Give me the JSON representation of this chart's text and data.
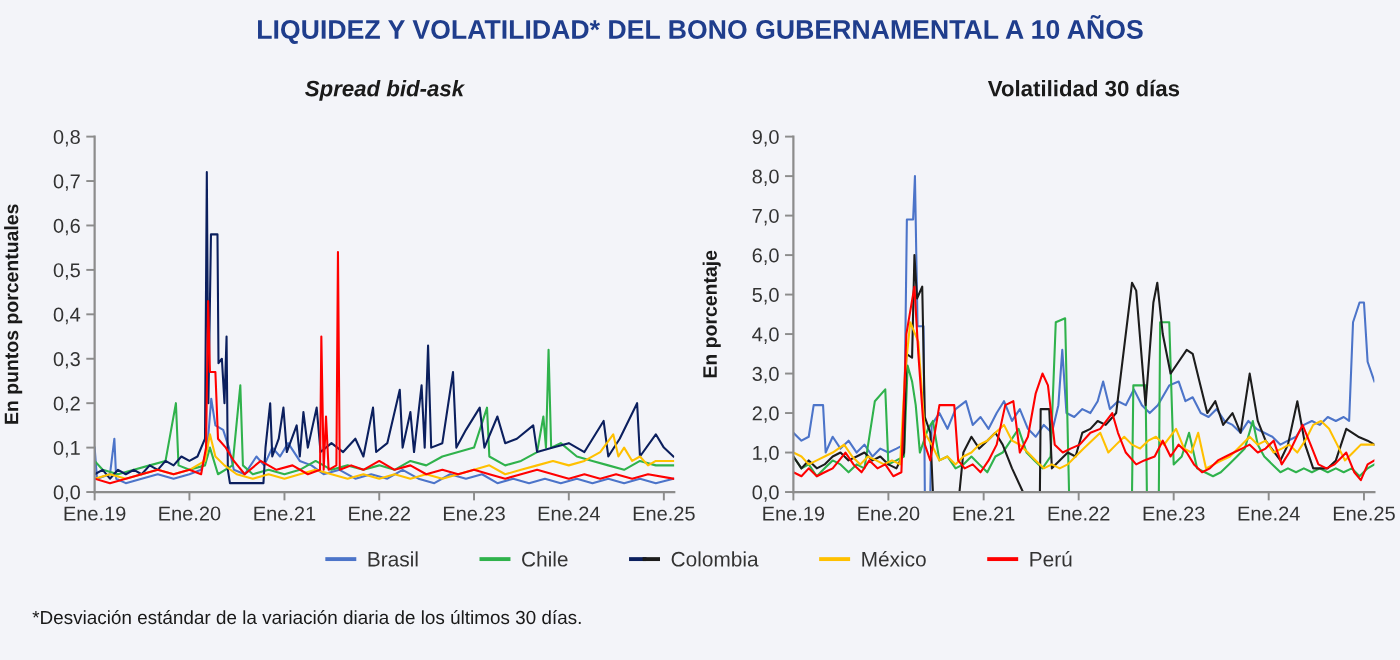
{
  "chart_data": [
    {
      "type": "line",
      "title": "LIQUIDEZ Y VOLATILIDAD* DEL BONO GUBERNAMENTAL A 10 AÑOS",
      "subtitle": "Spread bid-ask",
      "ylabel": "En puntos porcentuales",
      "legend": "bottom",
      "annotations": [
        "*Desviación estándar de la variación diaria de los últimos 30 días."
      ],
      "xlim": [
        "2019-01-01",
        "2025-02-10"
      ],
      "xticks": [
        {
          "value": "2019-01-01",
          "label": "Ene.19"
        },
        {
          "value": "2020-01-01",
          "label": "Ene.20"
        },
        {
          "value": "2021-01-01",
          "label": "Ene.21"
        },
        {
          "value": "2022-01-01",
          "label": "Ene.22"
        },
        {
          "value": "2023-01-01",
          "label": "Ene.23"
        },
        {
          "value": "2024-01-01",
          "label": "Ene.24"
        },
        {
          "value": "2025-01-01",
          "label": "Ene.25"
        }
      ],
      "ylim": [
        0,
        0.8
      ],
      "yticks": [
        {
          "value": 0,
          "label": "0,0"
        },
        {
          "value": 0.1,
          "label": "0,1"
        },
        {
          "value": 0.2,
          "label": "0,2"
        },
        {
          "value": 0.3,
          "label": "0,3"
        },
        {
          "value": 0.4,
          "label": "0,4"
        },
        {
          "value": 0.5,
          "label": "0,5"
        },
        {
          "value": 0.6,
          "label": "0,6"
        },
        {
          "value": 0.7,
          "label": "0,7"
        },
        {
          "value": 0.8,
          "label": "0,8"
        }
      ],
      "series": [
        {
          "name": "Brasil",
          "color": "#4c74c9",
          "x": [
            "2019-01-01",
            "2019-01-10",
            "2019-03-01",
            "2019-03-18",
            "2019-03-25",
            "2019-05-01",
            "2019-07-01",
            "2019-09-01",
            "2019-11-01",
            "2020-01-01",
            "2020-02-15",
            "2020-03-10",
            "2020-03-25",
            "2020-04-10",
            "2020-05-10",
            "2020-06-01",
            "2020-06-20",
            "2020-08-01",
            "2020-09-15",
            "2020-10-15",
            "2020-11-15",
            "2020-12-15",
            "2021-01-15",
            "2021-03-01",
            "2021-04-15",
            "2021-06-01",
            "2021-08-01",
            "2021-10-01",
            "2021-12-01",
            "2022-02-01",
            "2022-04-01",
            "2022-06-01",
            "2022-08-01",
            "2022-10-01",
            "2022-12-01",
            "2023-02-01",
            "2023-04-01",
            "2023-06-01",
            "2023-08-01",
            "2023-10-01",
            "2023-12-01",
            "2024-02-01",
            "2024-04-01",
            "2024-06-01",
            "2024-08-01",
            "2024-10-01",
            "2024-12-01",
            "2025-02-07"
          ],
          "values": [
            0.1,
            0.03,
            0.04,
            0.12,
            0.03,
            0.02,
            0.03,
            0.04,
            0.03,
            0.04,
            0.05,
            0.1,
            0.21,
            0.15,
            0.14,
            0.1,
            0.05,
            0.04,
            0.08,
            0.06,
            0.1,
            0.08,
            0.11,
            0.07,
            0.06,
            0.04,
            0.05,
            0.03,
            0.04,
            0.03,
            0.05,
            0.03,
            0.02,
            0.04,
            0.03,
            0.04,
            0.02,
            0.03,
            0.02,
            0.03,
            0.02,
            0.03,
            0.02,
            0.03,
            0.02,
            0.03,
            0.02,
            0.03
          ]
        },
        {
          "name": "Chile",
          "color": "#2fb24c",
          "x": [
            "2019-01-01",
            "2019-02-01",
            "2019-04-01",
            "2019-06-01",
            "2019-08-01",
            "2019-10-01",
            "2019-11-10",
            "2019-11-20",
            "2020-01-01",
            "2020-03-01",
            "2020-03-20",
            "2020-04-20",
            "2020-06-15",
            "2020-07-15",
            "2020-07-25",
            "2020-09-01",
            "2020-11-01",
            "2021-01-01",
            "2021-03-01",
            "2021-05-01",
            "2021-07-01",
            "2021-09-01",
            "2021-11-01",
            "2022-01-01",
            "2022-03-01",
            "2022-05-01",
            "2022-07-01",
            "2022-09-01",
            "2022-11-01",
            "2023-01-01",
            "2023-02-20",
            "2023-03-01",
            "2023-05-01",
            "2023-07-01",
            "2023-09-01",
            "2023-09-25",
            "2023-10-05",
            "2023-10-15",
            "2023-10-25",
            "2023-12-01",
            "2024-02-01",
            "2024-04-01",
            "2024-06-01",
            "2024-08-01",
            "2024-10-01",
            "2024-12-01",
            "2025-02-07"
          ],
          "values": [
            0.07,
            0.05,
            0.04,
            0.05,
            0.06,
            0.07,
            0.2,
            0.06,
            0.05,
            0.06,
            0.1,
            0.04,
            0.06,
            0.24,
            0.06,
            0.04,
            0.05,
            0.04,
            0.05,
            0.07,
            0.05,
            0.06,
            0.05,
            0.06,
            0.05,
            0.07,
            0.06,
            0.08,
            0.09,
            0.1,
            0.19,
            0.08,
            0.06,
            0.07,
            0.09,
            0.17,
            0.1,
            0.32,
            0.1,
            0.11,
            0.08,
            0.07,
            0.06,
            0.05,
            0.07,
            0.06,
            0.06
          ]
        },
        {
          "name": "Colombia",
          "color": "#0b1f5e",
          "x": [
            "2019-01-01",
            "2019-02-01",
            "2019-03-01",
            "2019-04-01",
            "2019-05-01",
            "2019-06-01",
            "2019-07-01",
            "2019-08-01",
            "2019-09-01",
            "2019-10-01",
            "2019-11-01",
            "2019-12-01",
            "2020-01-01",
            "2020-02-01",
            "2020-03-01",
            "2020-03-08",
            "2020-03-14",
            "2020-03-24",
            "2020-04-18",
            "2020-04-22",
            "2020-05-05",
            "2020-05-15",
            "2020-05-23",
            "2020-05-28",
            "2020-06-05",
            "2020-10-12",
            "2020-10-20",
            "2020-11-07",
            "2020-11-15",
            "2020-12-10",
            "2020-12-28",
            "2021-01-10",
            "2021-02-17",
            "2021-03-01",
            "2021-03-15",
            "2021-04-01",
            "2021-05-05",
            "2021-05-20",
            "2021-07-01",
            "2021-08-15",
            "2021-10-01",
            "2021-11-01",
            "2021-12-08",
            "2021-12-20",
            "2022-02-01",
            "2022-03-21",
            "2022-04-01",
            "2022-05-01",
            "2022-05-15",
            "2022-06-13",
            "2022-06-25",
            "2022-07-08",
            "2022-07-20",
            "2022-09-01",
            "2022-10-12",
            "2022-10-25",
            "2022-12-01",
            "2023-01-23",
            "2023-02-10",
            "2023-04-01",
            "2023-05-01",
            "2023-06-15",
            "2023-08-17",
            "2023-09-01",
            "2023-11-01",
            "2024-01-01",
            "2024-03-01",
            "2024-05-14",
            "2024-06-01",
            "2024-07-15",
            "2024-09-20",
            "2024-10-01",
            "2024-12-01",
            "2025-01-01",
            "2025-02-07"
          ],
          "values": [
            0.04,
            0.05,
            0.03,
            0.05,
            0.04,
            0.05,
            0.04,
            0.06,
            0.05,
            0.07,
            0.06,
            0.08,
            0.07,
            0.08,
            0.12,
            0.72,
            0.2,
            0.58,
            0.58,
            0.29,
            0.3,
            0.2,
            0.35,
            0.05,
            0.02,
            0.02,
            0.1,
            0.2,
            0.08,
            0.12,
            0.19,
            0.09,
            0.15,
            0.08,
            0.18,
            0.1,
            0.19,
            0.09,
            0.11,
            0.09,
            0.12,
            0.08,
            0.19,
            0.09,
            0.11,
            0.23,
            0.1,
            0.18,
            0.09,
            0.24,
            0.1,
            0.33,
            0.1,
            0.11,
            0.27,
            0.1,
            0.14,
            0.19,
            0.1,
            0.17,
            0.11,
            0.12,
            0.15,
            0.09,
            0.1,
            0.11,
            0.09,
            0.16,
            0.08,
            0.12,
            0.2,
            0.08,
            0.13,
            0.1,
            0.08
          ]
        },
        {
          "name": "México",
          "color": "#ffc000",
          "x": [
            "2019-01-01",
            "2019-03-01",
            "2019-05-01",
            "2019-07-01",
            "2019-09-01",
            "2019-11-01",
            "2020-01-01",
            "2020-03-01",
            "2020-03-20",
            "2020-04-10",
            "2020-05-15",
            "2020-07-01",
            "2020-09-01",
            "2020-11-01",
            "2021-01-01",
            "2021-03-01",
            "2021-05-01",
            "2021-07-01",
            "2021-09-01",
            "2021-11-01",
            "2022-01-01",
            "2022-03-01",
            "2022-05-01",
            "2022-07-01",
            "2022-09-01",
            "2022-11-01",
            "2023-01-01",
            "2023-03-01",
            "2023-05-01",
            "2023-07-01",
            "2023-09-01",
            "2023-11-01",
            "2024-01-01",
            "2024-03-01",
            "2024-05-01",
            "2024-06-20",
            "2024-07-10",
            "2024-08-01",
            "2024-09-01",
            "2024-10-01",
            "2024-11-01",
            "2024-12-01",
            "2025-02-07"
          ],
          "values": [
            0.03,
            0.04,
            0.03,
            0.04,
            0.05,
            0.04,
            0.05,
            0.07,
            0.13,
            0.08,
            0.06,
            0.04,
            0.03,
            0.04,
            0.03,
            0.04,
            0.05,
            0.04,
            0.03,
            0.04,
            0.03,
            0.04,
            0.03,
            0.04,
            0.03,
            0.04,
            0.05,
            0.06,
            0.04,
            0.05,
            0.06,
            0.07,
            0.06,
            0.07,
            0.09,
            0.13,
            0.08,
            0.1,
            0.07,
            0.08,
            0.06,
            0.07,
            0.07
          ]
        },
        {
          "name": "Perú",
          "color": "#ff0000",
          "x": [
            "2019-01-01",
            "2019-03-01",
            "2019-05-01",
            "2019-07-01",
            "2019-09-01",
            "2019-11-01",
            "2020-01-01",
            "2020-02-15",
            "2020-03-05",
            "2020-03-13",
            "2020-03-20",
            "2020-04-10",
            "2020-04-20",
            "2020-05-20",
            "2020-06-20",
            "2020-08-01",
            "2020-10-01",
            "2020-12-01",
            "2021-02-01",
            "2021-04-01",
            "2021-05-18",
            "2021-05-23",
            "2021-06-01",
            "2021-06-10",
            "2021-06-20",
            "2021-07-20",
            "2021-07-26",
            "2021-08-02",
            "2021-09-15",
            "2021-11-01",
            "2022-01-01",
            "2022-03-01",
            "2022-05-01",
            "2022-07-01",
            "2022-09-01",
            "2022-11-01",
            "2023-01-01",
            "2023-03-01",
            "2023-05-01",
            "2023-07-01",
            "2023-09-01",
            "2023-11-01",
            "2024-01-01",
            "2024-03-01",
            "2024-05-01",
            "2024-07-01",
            "2024-09-01",
            "2024-11-01",
            "2025-02-07"
          ],
          "values": [
            0.03,
            0.02,
            0.03,
            0.04,
            0.05,
            0.04,
            0.05,
            0.04,
            0.1,
            0.43,
            0.27,
            0.27,
            0.12,
            0.1,
            0.07,
            0.04,
            0.07,
            0.05,
            0.06,
            0.04,
            0.05,
            0.35,
            0.05,
            0.17,
            0.05,
            0.06,
            0.54,
            0.05,
            0.06,
            0.05,
            0.07,
            0.05,
            0.06,
            0.04,
            0.05,
            0.04,
            0.05,
            0.04,
            0.03,
            0.04,
            0.05,
            0.04,
            0.03,
            0.04,
            0.03,
            0.04,
            0.03,
            0.04,
            0.03
          ]
        }
      ]
    },
    {
      "type": "line",
      "subtitle": "Volatilidad 30 días",
      "ylabel": "En porcentaje",
      "legend": "bottom",
      "xlim": [
        "2019-01-01",
        "2025-02-10"
      ],
      "xticks": [
        {
          "value": "2019-01-01",
          "label": "Ene.19"
        },
        {
          "value": "2020-01-01",
          "label": "Ene.20"
        },
        {
          "value": "2021-01-01",
          "label": "Ene.21"
        },
        {
          "value": "2022-01-01",
          "label": "Ene.22"
        },
        {
          "value": "2023-01-01",
          "label": "Ene.23"
        },
        {
          "value": "2024-01-01",
          "label": "Ene.24"
        },
        {
          "value": "2025-01-01",
          "label": "Ene.25"
        }
      ],
      "ylim": [
        0,
        9
      ],
      "yticks": [
        {
          "value": 0,
          "label": "0,0"
        },
        {
          "value": 1,
          "label": "1,0"
        },
        {
          "value": 2,
          "label": "2,0"
        },
        {
          "value": 3,
          "label": "3,0"
        },
        {
          "value": 4,
          "label": "4,0"
        },
        {
          "value": 5,
          "label": "5,0"
        },
        {
          "value": 6,
          "label": "6,0"
        },
        {
          "value": 7,
          "label": "7,0"
        },
        {
          "value": 8,
          "label": "8,0"
        },
        {
          "value": 9,
          "label": "9,0"
        }
      ],
      "series": [
        {
          "name": "Brasil",
          "color": "#4c74c9",
          "x": [
            "2019-01-01",
            "2019-02-01",
            "2019-03-01",
            "2019-03-20",
            "2019-04-25",
            "2019-05-05",
            "2019-06-01",
            "2019-07-01",
            "2019-08-01",
            "2019-09-01",
            "2019-10-01",
            "2019-11-01",
            "2019-12-01",
            "2020-01-01",
            "2020-02-01",
            "2020-03-01",
            "2020-03-12",
            "2020-04-05",
            "2020-04-12",
            "2020-04-22",
            "2020-05-15",
            "2020-05-20",
            "2020-06-10",
            "2020-06-15",
            "2020-07-15",
            "2020-08-15",
            "2020-09-15",
            "2020-10-25",
            "2020-11-20",
            "2020-12-20",
            "2021-01-20",
            "2021-02-20",
            "2021-03-20",
            "2021-04-20",
            "2021-05-20",
            "2021-06-20",
            "2021-07-20",
            "2021-08-20",
            "2021-09-20",
            "2021-10-15",
            "2021-10-30",
            "2021-11-15",
            "2021-12-15",
            "2022-01-15",
            "2022-02-15",
            "2022-03-15",
            "2022-04-05",
            "2022-05-01",
            "2022-06-01",
            "2022-07-01",
            "2022-08-01",
            "2022-09-01",
            "2022-10-01",
            "2022-11-01",
            "2022-12-15",
            "2023-01-20",
            "2023-02-15",
            "2023-03-15",
            "2023-04-15",
            "2023-05-15",
            "2023-06-15",
            "2023-07-15",
            "2023-08-15",
            "2023-09-15",
            "2023-10-15",
            "2023-11-15",
            "2023-12-15",
            "2024-01-15",
            "2024-02-15",
            "2024-03-15",
            "2024-04-15",
            "2024-05-15",
            "2024-06-15",
            "2024-07-15",
            "2024-08-15",
            "2024-09-15",
            "2024-10-15",
            "2024-11-05",
            "2024-11-20",
            "2024-12-15",
            "2025-01-01",
            "2025-01-15",
            "2025-02-10"
          ],
          "values": [
            1.5,
            1.3,
            1.4,
            2.2,
            2.2,
            1.0,
            1.4,
            1.1,
            1.3,
            1.0,
            1.2,
            0.9,
            1.1,
            1.0,
            1.1,
            1.2,
            6.9,
            6.9,
            8.0,
            4.2,
            4.2,
            0.0,
            0.0,
            1.7,
            2.0,
            1.6,
            2.1,
            2.3,
            1.7,
            1.9,
            1.6,
            2.0,
            2.3,
            1.8,
            2.1,
            1.6,
            1.4,
            1.7,
            1.5,
            2.2,
            3.6,
            2.0,
            1.9,
            2.1,
            2.0,
            2.3,
            2.8,
            2.1,
            2.3,
            2.2,
            2.6,
            2.2,
            2.0,
            2.2,
            2.7,
            2.8,
            2.3,
            2.4,
            2.0,
            1.9,
            2.1,
            1.8,
            1.7,
            1.5,
            1.8,
            1.6,
            1.5,
            1.4,
            1.2,
            1.3,
            1.4,
            1.7,
            1.8,
            1.7,
            1.9,
            1.8,
            1.9,
            1.8,
            4.3,
            4.8,
            4.8,
            3.3,
            2.8
          ]
        },
        {
          "name": "Chile",
          "color": "#2fb24c",
          "x": [
            "2019-01-01",
            "2019-02-01",
            "2019-03-01",
            "2019-04-01",
            "2019-05-01",
            "2019-06-01",
            "2019-07-01",
            "2019-08-01",
            "2019-09-01",
            "2019-10-01",
            "2019-11-10",
            "2019-12-20",
            "2020-01-01",
            "2020-02-01",
            "2020-03-01",
            "2020-03-15",
            "2020-04-01",
            "2020-04-15",
            "2020-05-01",
            "2020-06-01",
            "2020-06-20",
            "2020-07-15",
            "2020-08-15",
            "2020-09-15",
            "2020-10-15",
            "2020-11-15",
            "2020-12-15",
            "2021-01-15",
            "2021-02-15",
            "2021-03-15",
            "2021-04-15",
            "2021-05-15",
            "2021-06-15",
            "2021-07-15",
            "2021-08-15",
            "2021-09-15",
            "2021-10-05",
            "2021-11-10",
            "2021-11-25",
            "2022-07-25",
            "2022-07-30",
            "2022-09-15",
            "2022-09-20",
            "2022-11-05",
            "2022-11-10",
            "2022-12-15",
            "2023-01-01",
            "2023-02-01",
            "2023-03-01",
            "2023-04-01",
            "2023-05-01",
            "2023-06-01",
            "2023-07-01",
            "2023-08-01",
            "2023-09-01",
            "2023-10-01",
            "2023-11-01",
            "2023-11-20",
            "2023-12-15",
            "2024-01-15",
            "2024-02-15",
            "2024-03-15",
            "2024-04-15",
            "2024-05-15",
            "2024-06-15",
            "2024-07-15",
            "2024-08-15",
            "2024-09-15",
            "2024-10-15",
            "2024-11-15",
            "2024-12-15",
            "2025-01-15",
            "2025-02-10"
          ],
          "values": [
            0.9,
            0.6,
            0.7,
            0.4,
            0.6,
            0.8,
            0.7,
            0.5,
            0.7,
            0.6,
            2.3,
            2.6,
            0.7,
            0.8,
            0.9,
            3.2,
            2.8,
            2.2,
            1.0,
            1.6,
            1.8,
            0.8,
            0.9,
            0.6,
            0.7,
            0.9,
            0.7,
            0.5,
            0.9,
            1.0,
            1.3,
            1.6,
            1.0,
            0.8,
            0.6,
            0.9,
            4.3,
            4.4,
            0.0,
            0.0,
            2.7,
            2.7,
            0.0,
            0.0,
            4.3,
            4.3,
            0.7,
            0.9,
            1.5,
            0.6,
            0.5,
            0.4,
            0.5,
            0.7,
            0.9,
            1.1,
            1.8,
            1.2,
            0.9,
            0.7,
            0.5,
            0.6,
            0.5,
            0.6,
            0.5,
            0.6,
            0.5,
            0.6,
            0.5,
            0.6,
            0.4,
            0.6,
            0.7
          ]
        },
        {
          "name": "Colombia",
          "color": "#1c1c1c",
          "x": [
            "2019-01-01",
            "2019-02-01",
            "2019-03-01",
            "2019-04-01",
            "2019-05-01",
            "2019-06-01",
            "2019-07-01",
            "2019-08-01",
            "2019-09-01",
            "2019-10-01",
            "2019-11-01",
            "2019-12-01",
            "2020-01-01",
            "2020-02-01",
            "2020-03-01",
            "2020-03-10",
            "2020-04-01",
            "2020-04-10",
            "2020-04-20",
            "2020-05-10",
            "2020-05-20",
            "2020-06-10",
            "2020-06-20",
            "2020-09-30",
            "2020-10-15",
            "2020-11-15",
            "2020-12-15",
            "2021-01-15",
            "2021-02-15",
            "2021-03-15",
            "2021-04-20",
            "2021-06-01",
            "2021-08-05",
            "2021-08-08",
            "2021-09-10",
            "2021-09-20",
            "2021-10-20",
            "2021-11-20",
            "2021-12-20",
            "2022-01-15",
            "2022-02-15",
            "2022-03-15",
            "2022-04-15",
            "2022-05-25",
            "2022-07-25",
            "2022-08-10",
            "2022-09-15",
            "2022-10-15",
            "2022-10-30",
            "2022-11-20",
            "2022-12-20",
            "2023-01-20",
            "2023-02-20",
            "2023-03-15",
            "2023-04-10",
            "2023-05-10",
            "2023-06-10",
            "2023-07-10",
            "2023-08-15",
            "2023-09-15",
            "2023-10-20",
            "2023-11-20",
            "2023-12-20",
            "2024-02-15",
            "2024-03-15",
            "2024-04-20",
            "2024-05-20",
            "2024-06-20",
            "2024-08-15",
            "2024-09-15",
            "2024-10-25",
            "2024-12-10",
            "2025-01-15",
            "2025-02-10"
          ],
          "values": [
            0.9,
            0.6,
            0.8,
            0.6,
            0.7,
            0.9,
            1.0,
            0.8,
            0.9,
            1.0,
            0.8,
            0.9,
            0.7,
            0.6,
            1.0,
            3.5,
            3.4,
            6.0,
            4.9,
            5.2,
            1.9,
            1.5,
            0.0,
            0.0,
            1.0,
            1.4,
            1.1,
            1.3,
            1.5,
            1.2,
            0.6,
            0.0,
            0.0,
            2.1,
            2.1,
            0.6,
            0.8,
            1.0,
            0.9,
            1.5,
            1.6,
            1.8,
            1.7,
            2.0,
            5.3,
            5.1,
            2.2,
            4.8,
            5.3,
            4.0,
            3.0,
            3.3,
            3.6,
            3.5,
            2.8,
            2.0,
            2.3,
            1.7,
            2.0,
            1.5,
            3.0,
            1.8,
            1.3,
            0.8,
            1.2,
            2.3,
            1.2,
            0.6,
            0.6,
            0.8,
            1.6,
            1.4,
            1.3,
            1.2
          ]
        },
        {
          "name": "México",
          "color": "#ffc000",
          "x": [
            "2019-01-01",
            "2019-02-01",
            "2019-03-01",
            "2019-04-01",
            "2019-05-01",
            "2019-06-01",
            "2019-07-15",
            "2019-08-15",
            "2019-09-15",
            "2019-10-15",
            "2019-11-15",
            "2019-12-15",
            "2020-01-15",
            "2020-02-15",
            "2020-03-05",
            "2020-03-25",
            "2020-04-25",
            "2020-05-20",
            "2020-06-15",
            "2020-07-15",
            "2020-08-15",
            "2020-09-15",
            "2020-10-15",
            "2020-11-15",
            "2020-12-15",
            "2021-01-15",
            "2021-02-15",
            "2021-03-20",
            "2021-04-20",
            "2021-05-20",
            "2021-06-20",
            "2021-07-20",
            "2021-08-20",
            "2021-09-20",
            "2021-10-20",
            "2021-11-20",
            "2021-12-20",
            "2022-01-20",
            "2022-03-25",
            "2022-04-25",
            "2022-05-25",
            "2022-06-25",
            "2022-07-25",
            "2022-08-25",
            "2022-09-25",
            "2022-10-25",
            "2022-11-25",
            "2023-01-10",
            "2023-02-10",
            "2023-03-10",
            "2023-04-05",
            "2023-05-05",
            "2023-06-05",
            "2023-07-05",
            "2023-08-05",
            "2023-09-05",
            "2023-10-20",
            "2023-11-20",
            "2023-12-20",
            "2024-01-20",
            "2024-02-20",
            "2024-03-20",
            "2024-04-20",
            "2024-05-20",
            "2024-06-20",
            "2024-07-20",
            "2024-08-20",
            "2024-09-20",
            "2024-10-20",
            "2024-11-20",
            "2024-12-20",
            "2025-02-10"
          ],
          "values": [
            1.0,
            0.9,
            0.7,
            0.8,
            0.9,
            1.0,
            1.2,
            0.9,
            0.7,
            0.9,
            0.8,
            0.7,
            0.8,
            0.7,
            3.0,
            4.3,
            3.8,
            1.5,
            1.2,
            0.8,
            0.9,
            0.7,
            0.9,
            1.0,
            1.2,
            1.3,
            1.5,
            1.7,
            1.3,
            1.2,
            1.0,
            0.8,
            0.6,
            0.7,
            0.6,
            0.7,
            0.9,
            1.1,
            1.5,
            1.0,
            1.2,
            1.4,
            1.2,
            1.1,
            1.3,
            1.4,
            1.2,
            1.6,
            1.1,
            1.0,
            1.5,
            0.6,
            0.7,
            0.8,
            0.9,
            1.1,
            1.4,
            1.2,
            1.3,
            1.0,
            1.1,
            1.2,
            1.0,
            1.3,
            1.7,
            1.8,
            1.6,
            1.2,
            0.8,
            1.0,
            1.2,
            1.2
          ]
        },
        {
          "name": "Perú",
          "color": "#ff0000",
          "x": [
            "2019-01-01",
            "2019-02-01",
            "2019-03-01",
            "2019-04-01",
            "2019-05-01",
            "2019-06-01",
            "2019-07-20",
            "2019-08-20",
            "2019-09-20",
            "2019-10-20",
            "2019-11-20",
            "2019-12-20",
            "2020-01-20",
            "2020-02-20",
            "2020-03-10",
            "2020-04-10",
            "2020-04-25",
            "2020-05-20",
            "2020-06-10",
            "2020-07-15",
            "2020-09-10",
            "2020-09-25",
            "2020-10-20",
            "2020-11-20",
            "2020-12-20",
            "2021-01-20",
            "2021-02-20",
            "2021-03-25",
            "2021-04-25",
            "2021-05-20",
            "2021-06-20",
            "2021-07-20",
            "2021-08-15",
            "2021-09-05",
            "2021-10-01",
            "2021-11-01",
            "2021-12-01",
            "2022-01-05",
            "2022-02-15",
            "2022-03-25",
            "2022-05-10",
            "2022-06-01",
            "2022-07-01",
            "2022-08-10",
            "2022-09-10",
            "2022-10-20",
            "2022-11-20",
            "2022-12-20",
            "2023-01-20",
            "2023-02-20",
            "2023-03-20",
            "2023-04-20",
            "2023-05-20",
            "2023-06-20",
            "2023-07-20",
            "2023-08-20",
            "2023-09-20",
            "2023-10-20",
            "2023-11-20",
            "2023-12-20",
            "2024-01-20",
            "2024-02-20",
            "2024-03-20",
            "2024-05-10",
            "2024-06-10",
            "2024-07-10",
            "2024-08-10",
            "2024-09-10",
            "2024-10-25",
            "2024-11-25",
            "2024-12-20",
            "2025-01-15",
            "2025-02-10"
          ],
          "values": [
            0.5,
            0.4,
            0.6,
            0.4,
            0.5,
            0.6,
            1.0,
            0.7,
            0.5,
            0.8,
            0.6,
            0.7,
            0.4,
            0.5,
            4.0,
            5.2,
            3.5,
            1.2,
            0.8,
            2.2,
            2.2,
            0.8,
            0.6,
            0.7,
            0.5,
            0.8,
            1.2,
            2.2,
            2.3,
            1.0,
            1.4,
            2.5,
            3.0,
            2.7,
            1.2,
            1.0,
            1.1,
            1.2,
            1.5,
            1.6,
            2.0,
            1.5,
            1.0,
            0.7,
            0.8,
            0.9,
            1.3,
            0.9,
            1.2,
            1.0,
            0.7,
            0.5,
            0.6,
            0.8,
            0.9,
            1.0,
            1.1,
            1.2,
            1.0,
            1.1,
            1.3,
            0.7,
            1.0,
            1.7,
            1.2,
            0.7,
            0.6,
            0.7,
            1.0,
            0.5,
            0.3,
            0.7,
            0.8
          ]
        }
      ]
    }
  ]
}
